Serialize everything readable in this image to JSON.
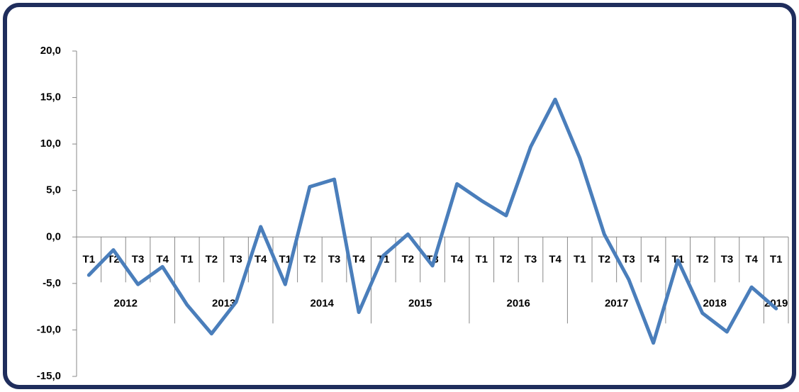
{
  "chart_data": {
    "type": "line",
    "categories": [
      "T1",
      "T2",
      "T3",
      "T4",
      "T1",
      "T2",
      "T3",
      "T4",
      "T1",
      "T2",
      "T3",
      "T4",
      "T1",
      "T2",
      "T3",
      "T4",
      "T1",
      "T2",
      "T3",
      "T4",
      "T1",
      "T2",
      "T3",
      "T4",
      "T1",
      "T2",
      "T3",
      "T4",
      "T1"
    ],
    "years": [
      "2012",
      "2013",
      "2014",
      "2015",
      "2016",
      "2017",
      "2018",
      "2019"
    ],
    "values": [
      -4.1,
      -1.4,
      -5.1,
      -3.2,
      -7.3,
      -10.4,
      -7.0,
      1.1,
      -5.1,
      5.4,
      6.2,
      -8.1,
      -2.0,
      0.3,
      -3.1,
      5.7,
      3.9,
      2.3,
      9.7,
      14.8,
      8.5,
      0.3,
      -4.6,
      -11.4,
      -2.5,
      -8.2,
      -10.2,
      -5.4,
      -7.7
    ],
    "color": "#4a7ebb",
    "ylim": [
      -15,
      20
    ],
    "yticks": [
      {
        "value": -15,
        "label": "-15,0"
      },
      {
        "value": -10,
        "label": "-10,0"
      },
      {
        "value": -5,
        "label": "-5,0"
      },
      {
        "value": 0,
        "label": "0,0"
      },
      {
        "value": 5,
        "label": "5,0"
      },
      {
        "value": 10,
        "label": "10,0"
      },
      {
        "value": 15,
        "label": "15,0"
      },
      {
        "value": 20,
        "label": "20,0"
      }
    ]
  }
}
